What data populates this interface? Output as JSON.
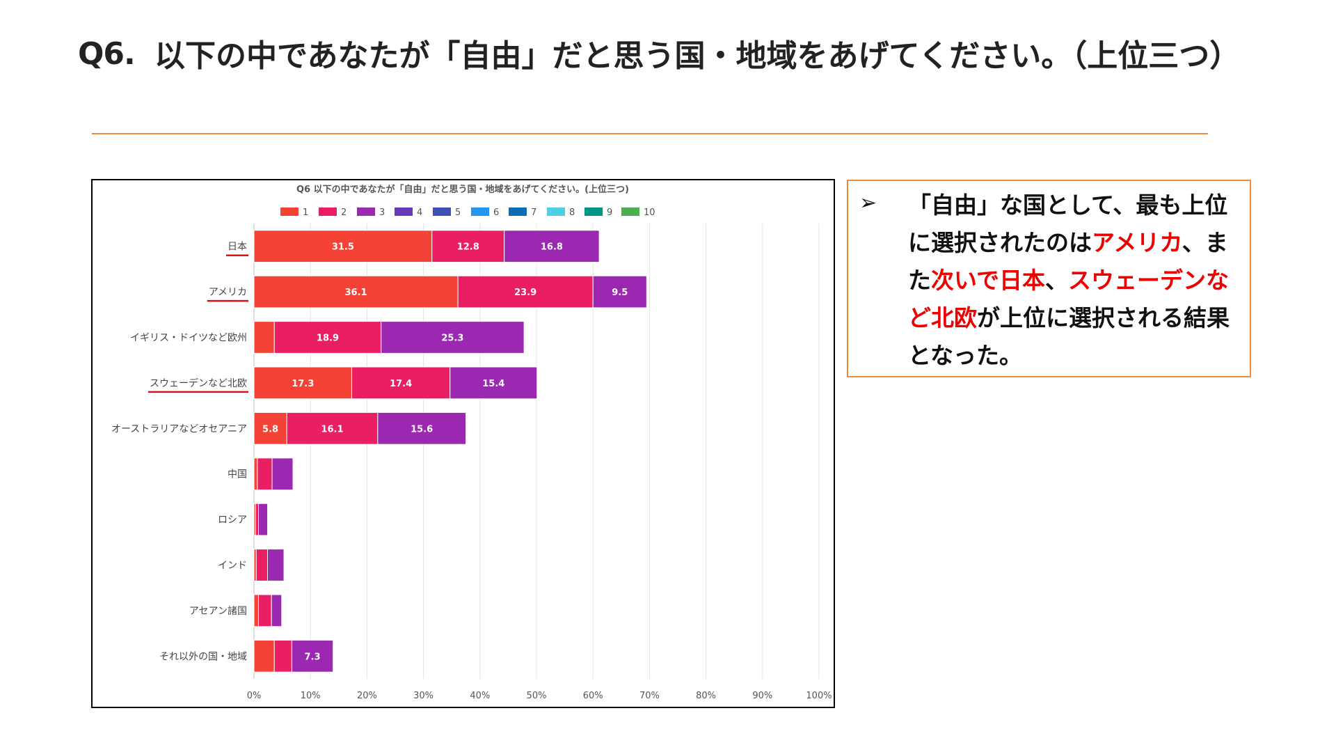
{
  "header": {
    "question_label": "Q6.",
    "question_text": "以下の中であなたが「自由」だと思う国・地域をあげてください。（上位三つ）"
  },
  "colors": {
    "rule": "#ec8a3a",
    "highlight_text": "#ee0000",
    "underline": "#dd1111",
    "grid": "#e4e4e4"
  },
  "chart_data": {
    "type": "bar",
    "orientation": "horizontal",
    "stacked": true,
    "title": "Q6 以下の中であなたが「自由」だと思う国・地域をあげてください。(上位三つ)",
    "xlabel": "",
    "ylabel": "",
    "xlim": [
      0,
      100
    ],
    "x_ticks": [
      "0%",
      "10%",
      "20%",
      "30%",
      "40%",
      "50%",
      "60%",
      "70%",
      "80%",
      "90%",
      "100%"
    ],
    "grid": true,
    "legend_position": "top",
    "legend": [
      {
        "name": "1",
        "color": "#f44336"
      },
      {
        "name": "2",
        "color": "#e91e63"
      },
      {
        "name": "3",
        "color": "#9c27b0"
      },
      {
        "name": "4",
        "color": "#673ab7"
      },
      {
        "name": "5",
        "color": "#3f51b5"
      },
      {
        "name": "6",
        "color": "#2196f3"
      },
      {
        "name": "7",
        "color": "#0b6bb5"
      },
      {
        "name": "8",
        "color": "#4dd0e1"
      },
      {
        "name": "9",
        "color": "#009688"
      },
      {
        "name": "10",
        "color": "#4caf50"
      }
    ],
    "categories": [
      "日本",
      "アメリカ",
      "イギリス・ドイツなど欧州",
      "スウェーデンなど北欧",
      "オーストラリアなどオセアニア",
      "中国",
      "ロシア",
      "インド",
      "アセアン諸国",
      "それ以外の国・地域"
    ],
    "underlined_categories": [
      "日本",
      "アメリカ",
      "スウェーデンなど北欧"
    ],
    "series": [
      {
        "name": "1",
        "color": "#f44336",
        "values": [
          31.5,
          36.1,
          3.6,
          17.3,
          5.8,
          0.6,
          0.3,
          0.4,
          0.8,
          3.6
        ]
      },
      {
        "name": "2",
        "color": "#e91e63",
        "values": [
          12.8,
          23.9,
          18.9,
          17.4,
          16.1,
          2.6,
          0.5,
          2.0,
          2.3,
          3.1
        ]
      },
      {
        "name": "3",
        "color": "#9c27b0",
        "values": [
          16.8,
          9.5,
          25.3,
          15.4,
          15.6,
          3.7,
          1.6,
          2.9,
          1.8,
          7.3
        ]
      }
    ],
    "data_labels": [
      [
        "31.5",
        "12.8",
        "16.8"
      ],
      [
        "36.1",
        "23.9",
        "9.5"
      ],
      [
        "",
        "18.9",
        "25.3"
      ],
      [
        "17.3",
        "17.4",
        "15.4"
      ],
      [
        "5.8",
        "16.1",
        "15.6"
      ],
      [
        "",
        "",
        ""
      ],
      [
        "",
        "",
        ""
      ],
      [
        "",
        "",
        ""
      ],
      [
        "",
        "",
        ""
      ],
      [
        "",
        "",
        "7.3"
      ]
    ]
  },
  "note": {
    "arrow": "➢",
    "segments": [
      {
        "text": "「自由」な国として、最も上位に選択されたのは",
        "highlight": false
      },
      {
        "text": "アメリカ",
        "highlight": true
      },
      {
        "text": "、また",
        "highlight": false
      },
      {
        "text": "次いで日本",
        "highlight": true
      },
      {
        "text": "、",
        "highlight": false
      },
      {
        "text": "スウェーデンなど北欧",
        "highlight": true
      },
      {
        "text": "が上位に選択される結果となった。",
        "highlight": false
      }
    ]
  }
}
